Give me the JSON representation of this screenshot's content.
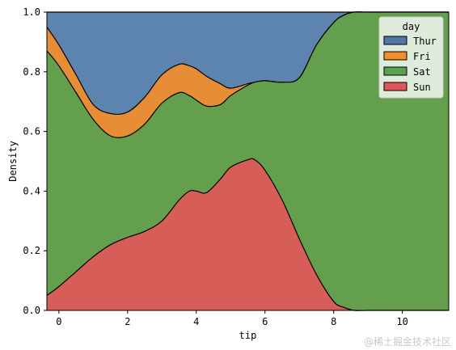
{
  "chart_data": {
    "type": "area",
    "xlabel": "tip",
    "ylabel": "Density",
    "xlim": [
      -0.35,
      11.35
    ],
    "ylim": [
      0.0,
      1.0
    ],
    "xticks": [
      0,
      2,
      4,
      6,
      8,
      10
    ],
    "yticks": [
      0.0,
      0.2,
      0.4,
      0.6,
      0.8,
      1.0
    ],
    "xtick_labels": [
      "0",
      "2",
      "4",
      "6",
      "8",
      "10"
    ],
    "ytick_labels": [
      "0.0",
      "0.2",
      "0.4",
      "0.6",
      "0.8",
      "1.0"
    ],
    "stacked": "fill",
    "grid": false,
    "legend": {
      "title": "day",
      "placement": "top-right",
      "entries": [
        "Thur",
        "Fri",
        "Sat",
        "Sun"
      ]
    },
    "x": [
      -0.35,
      0.0,
      0.5,
      1.0,
      1.5,
      2.0,
      2.5,
      3.0,
      3.5,
      3.8,
      4.0,
      4.3,
      4.7,
      5.0,
      5.5,
      5.7,
      6.0,
      6.5,
      7.0,
      7.5,
      8.0,
      8.3,
      8.6,
      9.0,
      10.0,
      11.35
    ],
    "series": [
      {
        "name": "Sun",
        "color": "#e15759",
        "cumulative_top": [
          0.05,
          0.08,
          0.13,
          0.18,
          0.22,
          0.245,
          0.265,
          0.3,
          0.37,
          0.4,
          0.4,
          0.395,
          0.44,
          0.48,
          0.505,
          0.505,
          0.47,
          0.37,
          0.24,
          0.12,
          0.03,
          0.01,
          0.0,
          0.0,
          0.0,
          0.0
        ]
      },
      {
        "name": "Sat",
        "color": "#59a14f",
        "cumulative_top": [
          0.87,
          0.82,
          0.73,
          0.64,
          0.585,
          0.585,
          0.625,
          0.695,
          0.73,
          0.72,
          0.705,
          0.685,
          0.69,
          0.72,
          0.755,
          0.765,
          0.77,
          0.765,
          0.78,
          0.89,
          0.965,
          0.99,
          1.0,
          1.0,
          1.0,
          1.0
        ]
      },
      {
        "name": "Fri",
        "color": "#f28e2b",
        "cumulative_top": [
          0.95,
          0.89,
          0.79,
          0.69,
          0.66,
          0.665,
          0.715,
          0.79,
          0.825,
          0.82,
          0.81,
          0.785,
          0.76,
          0.745,
          0.76,
          0.765,
          0.77,
          0.765,
          0.78,
          0.89,
          0.965,
          0.99,
          1.0,
          1.0,
          1.0,
          1.0
        ]
      },
      {
        "name": "Thur",
        "color": "#4e79a7",
        "cumulative_top": [
          1.0,
          1.0,
          1.0,
          1.0,
          1.0,
          1.0,
          1.0,
          1.0,
          1.0,
          1.0,
          1.0,
          1.0,
          1.0,
          1.0,
          1.0,
          1.0,
          1.0,
          1.0,
          1.0,
          1.0,
          1.0,
          1.0,
          1.0,
          1.0,
          1.0,
          1.0
        ]
      }
    ]
  },
  "watermark": "@稀土掘金技术社区"
}
